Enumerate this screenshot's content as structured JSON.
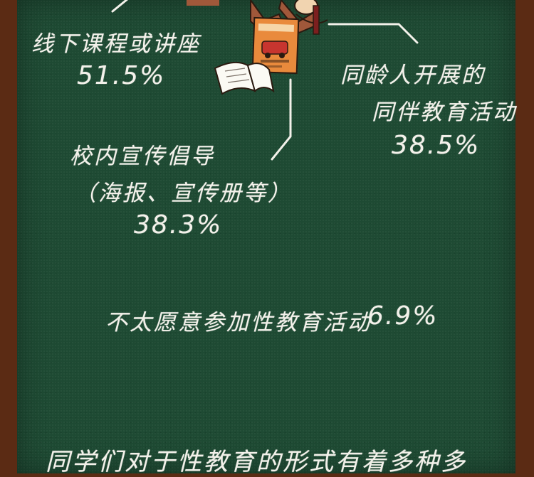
{
  "items": [
    {
      "label": "线下课程或讲座",
      "value": "51.5%"
    },
    {
      "label_line1": "同龄人开展的",
      "label_line2": "同伴教育活动",
      "value": "38.5%"
    },
    {
      "label_line1": "校内宣传倡导",
      "label_line2": "（海报、宣传册等）",
      "value": "38.3%"
    },
    {
      "label": "不太愿意参加性教育活动",
      "value": "6.9%"
    }
  ],
  "footer_text": "同学们对于性教育的形式有着多种多",
  "colors": {
    "board": "#1e4a33",
    "frame": "#5b2b14",
    "chalk": "#f3f1ea",
    "poster": "#e98a3c",
    "clothing": "#a0583a"
  }
}
